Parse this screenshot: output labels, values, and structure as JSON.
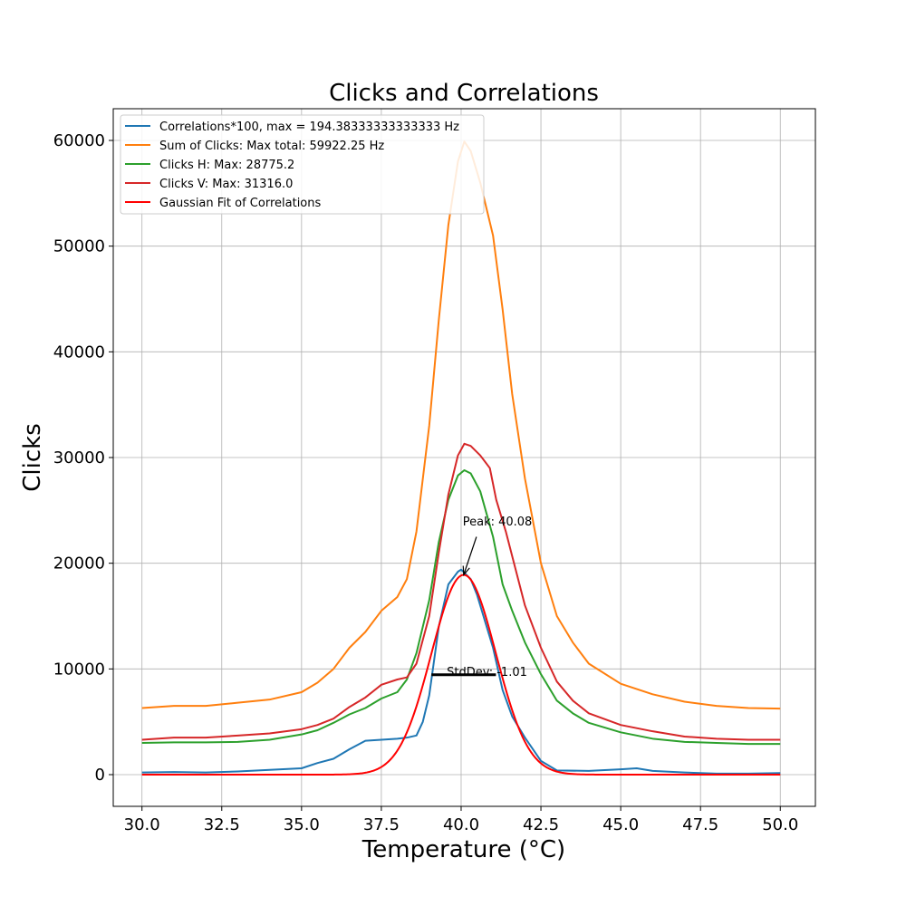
{
  "chart_data": {
    "type": "line",
    "title": "Clicks and Correlations",
    "xlabel": "Temperature (°C)",
    "ylabel": "Clicks",
    "xlim": [
      29.1,
      51.1
    ],
    "ylim": [
      -3000,
      63000
    ],
    "x_ticks": [
      30.0,
      32.5,
      35.0,
      37.5,
      40.0,
      42.5,
      45.0,
      47.5,
      50.0
    ],
    "x_tick_labels": [
      "30.0",
      "32.5",
      "35.0",
      "37.5",
      "40.0",
      "42.5",
      "45.0",
      "47.5",
      "50.0"
    ],
    "y_ticks": [
      0,
      10000,
      20000,
      30000,
      40000,
      50000,
      60000
    ],
    "y_tick_labels": [
      "0",
      "10000",
      "20000",
      "30000",
      "40000",
      "50000",
      "60000"
    ],
    "grid": true,
    "legend_position": "top-left",
    "series": [
      {
        "name": "Correlations*100, max = 194.38333333333333 Hz",
        "color": "#1f77b4",
        "x": [
          30,
          31,
          32,
          33,
          34,
          35,
          35.5,
          36,
          36.5,
          37,
          37.5,
          38,
          38.3,
          38.6,
          38.8,
          39,
          39.3,
          39.6,
          39.9,
          40,
          40.3,
          40.5,
          40.8,
          41,
          41.3,
          41.6,
          42,
          42.5,
          43,
          44,
          45,
          45.5,
          46,
          47,
          48,
          49,
          50
        ],
        "y": [
          200,
          250,
          200,
          300,
          450,
          600,
          1100,
          1500,
          2400,
          3200,
          3300,
          3400,
          3500,
          3700,
          5000,
          7500,
          14000,
          18000,
          19200,
          19400,
          18500,
          17000,
          14000,
          12000,
          8000,
          5500,
          3500,
          1300,
          400,
          350,
          500,
          600,
          350,
          200,
          100,
          100,
          150
        ]
      },
      {
        "name": "Sum of Clicks: Max total: 59922.25 Hz",
        "color": "#ff7f0e",
        "x": [
          30,
          31,
          32,
          33,
          34,
          35,
          35.5,
          36,
          36.5,
          37,
          37.5,
          38,
          38.3,
          38.6,
          39,
          39.3,
          39.6,
          39.9,
          40.1,
          40.3,
          40.6,
          41,
          41.3,
          41.6,
          42,
          42.5,
          43,
          43.5,
          44,
          45,
          46,
          47,
          48,
          49,
          50
        ],
        "y": [
          6300,
          6500,
          6500,
          6800,
          7100,
          7800,
          8700,
          10000,
          12000,
          13500,
          15500,
          16800,
          18500,
          23000,
          33000,
          43000,
          52000,
          58000,
          59900,
          59000,
          56000,
          51000,
          44000,
          36000,
          28000,
          20000,
          15000,
          12500,
          10500,
          8600,
          7600,
          6900,
          6500,
          6300,
          6250
        ]
      },
      {
        "name": "Clicks H: Max: 28775.2",
        "color": "#2ca02c",
        "x": [
          30,
          31,
          32,
          33,
          34,
          35,
          35.5,
          36,
          36.5,
          37,
          37.5,
          38,
          38.3,
          38.6,
          39,
          39.3,
          39.6,
          39.9,
          40.1,
          40.3,
          40.6,
          41,
          41.3,
          41.6,
          42,
          42.5,
          43,
          43.5,
          44,
          45,
          46,
          47,
          48,
          49,
          50
        ],
        "y": [
          3000,
          3050,
          3050,
          3100,
          3300,
          3800,
          4200,
          4900,
          5700,
          6300,
          7200,
          7800,
          9000,
          11500,
          16500,
          22000,
          26000,
          28300,
          28800,
          28500,
          26800,
          22500,
          18000,
          15500,
          12500,
          9500,
          7000,
          5800,
          4900,
          4000,
          3400,
          3100,
          3000,
          2900,
          2900
        ]
      },
      {
        "name": "Clicks V: Max: 31316.0",
        "color": "#d62728",
        "x": [
          30,
          31,
          32,
          33,
          34,
          35,
          35.5,
          36,
          36.5,
          37,
          37.5,
          38,
          38.3,
          38.6,
          39,
          39.3,
          39.6,
          39.9,
          40.1,
          40.3,
          40.6,
          40.9,
          41.1,
          41.4,
          41.7,
          42,
          42.5,
          43,
          43.5,
          44,
          45,
          46,
          47,
          48,
          49,
          50
        ],
        "y": [
          3300,
          3500,
          3500,
          3700,
          3900,
          4300,
          4700,
          5300,
          6400,
          7300,
          8500,
          9000,
          9200,
          10500,
          15000,
          21000,
          26500,
          30200,
          31300,
          31100,
          30200,
          29000,
          26000,
          23000,
          19500,
          16000,
          12000,
          8800,
          7000,
          5800,
          4700,
          4100,
          3600,
          3400,
          3300,
          3300
        ]
      },
      {
        "name": "Gaussian Fit of Correlations",
        "color": "#ff0000",
        "gaussian": {
          "amplitude": 18900,
          "mean": 40.08,
          "stddev": 1.01,
          "x_min": 30,
          "x_max": 50
        }
      }
    ],
    "annotations": {
      "peak_label": "Peak: 40.08",
      "peak_x": 40.08,
      "peak_y": 18900,
      "peak_text_x": 40.05,
      "peak_text_y": 24000,
      "stddev_label": "StdDev: -1.01",
      "stddev_x_start": 39.07,
      "stddev_x_end": 41.09,
      "stddev_y": 9450,
      "stddev_text_x": 39.55,
      "stddev_text_y": 9450
    }
  }
}
